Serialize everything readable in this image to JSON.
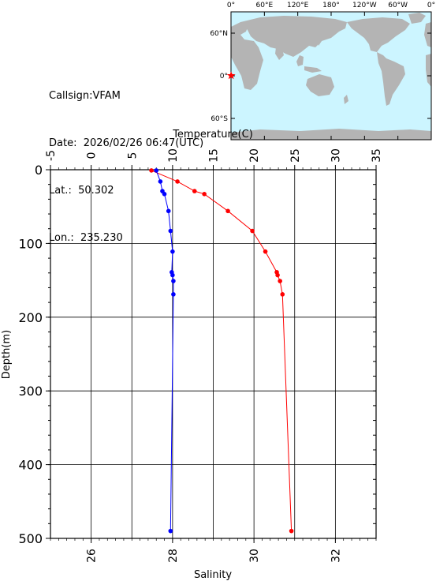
{
  "station": {
    "callsign": "Callsign:VFAM",
    "date": "Date:  2026/02/26 06:47(UTC)",
    "lat": "Lat.:  50.302",
    "lon": "Lon.:  235.230"
  },
  "map": {
    "top_labels": [
      "0°",
      "60°E",
      "120°E",
      "180°",
      "120°W",
      "60°W",
      "0°"
    ],
    "side_labels": [
      "60°N",
      "0°",
      "60°S"
    ],
    "ocean_color": "#ccf5ff",
    "land_color": "#b4b4b4",
    "marker_color": "#ff0000"
  },
  "chart_data": {
    "type": "line",
    "ylabel": "Depth(m)",
    "ylim": [
      500,
      0
    ],
    "yticks": [
      0,
      100,
      200,
      300,
      400,
      500
    ],
    "top_axis": {
      "label": "Temperature(C)",
      "lim": [
        -5,
        35
      ],
      "ticks": [
        -5,
        0,
        5,
        10,
        15,
        20,
        25,
        30,
        35
      ]
    },
    "bottom_axis": {
      "label": "Salinity",
      "lim": [
        25,
        33
      ],
      "ticks": [
        26,
        28,
        30,
        32
      ]
    },
    "grid": true,
    "series": [
      {
        "axis": "top",
        "color": "#ff0000",
        "points": [
          {
            "depth": 1,
            "value": 7.4
          },
          {
            "depth": 16,
            "value": 10.6
          },
          {
            "depth": 29,
            "value": 12.7
          },
          {
            "depth": 33,
            "value": 13.9
          },
          {
            "depth": 56,
            "value": 16.8
          },
          {
            "depth": 83,
            "value": 19.8
          },
          {
            "depth": 111,
            "value": 21.4
          },
          {
            "depth": 139,
            "value": 22.8
          },
          {
            "depth": 143,
            "value": 22.9
          },
          {
            "depth": 151,
            "value": 23.2
          },
          {
            "depth": 169,
            "value": 23.5
          },
          {
            "depth": 490,
            "value": 24.6
          }
        ]
      },
      {
        "axis": "bottom",
        "color": "#0000ff",
        "points": [
          {
            "depth": 1,
            "value": 27.6
          },
          {
            "depth": 16,
            "value": 27.7
          },
          {
            "depth": 29,
            "value": 27.75
          },
          {
            "depth": 33,
            "value": 27.8
          },
          {
            "depth": 56,
            "value": 27.9
          },
          {
            "depth": 83,
            "value": 27.95
          },
          {
            "depth": 111,
            "value": 28.0
          },
          {
            "depth": 139,
            "value": 27.98
          },
          {
            "depth": 143,
            "value": 28.0
          },
          {
            "depth": 151,
            "value": 28.02
          },
          {
            "depth": 169,
            "value": 28.02
          },
          {
            "depth": 490,
            "value": 27.95
          }
        ]
      }
    ]
  }
}
